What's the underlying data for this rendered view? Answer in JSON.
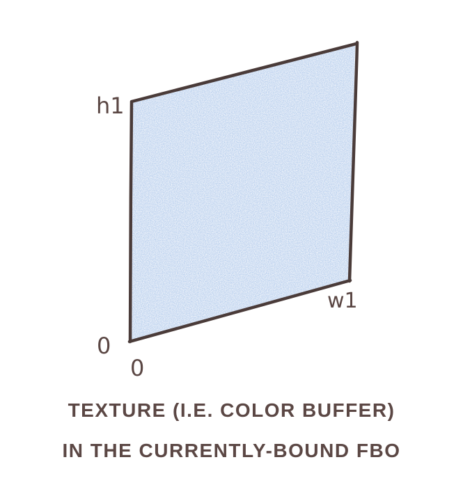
{
  "diagram": {
    "labels": {
      "h1": "h1",
      "w1": "w1",
      "origin_y": "0",
      "origin_x": "0"
    },
    "caption": {
      "line1": "TEXTURE (I.E. COLOR BUFFER)",
      "line2": "IN THE CURRENTLY-BOUND FBO"
    },
    "colors": {
      "fill": "#b9d0ee",
      "stroke": "#4a3b39",
      "ink": "#5a4643"
    }
  }
}
